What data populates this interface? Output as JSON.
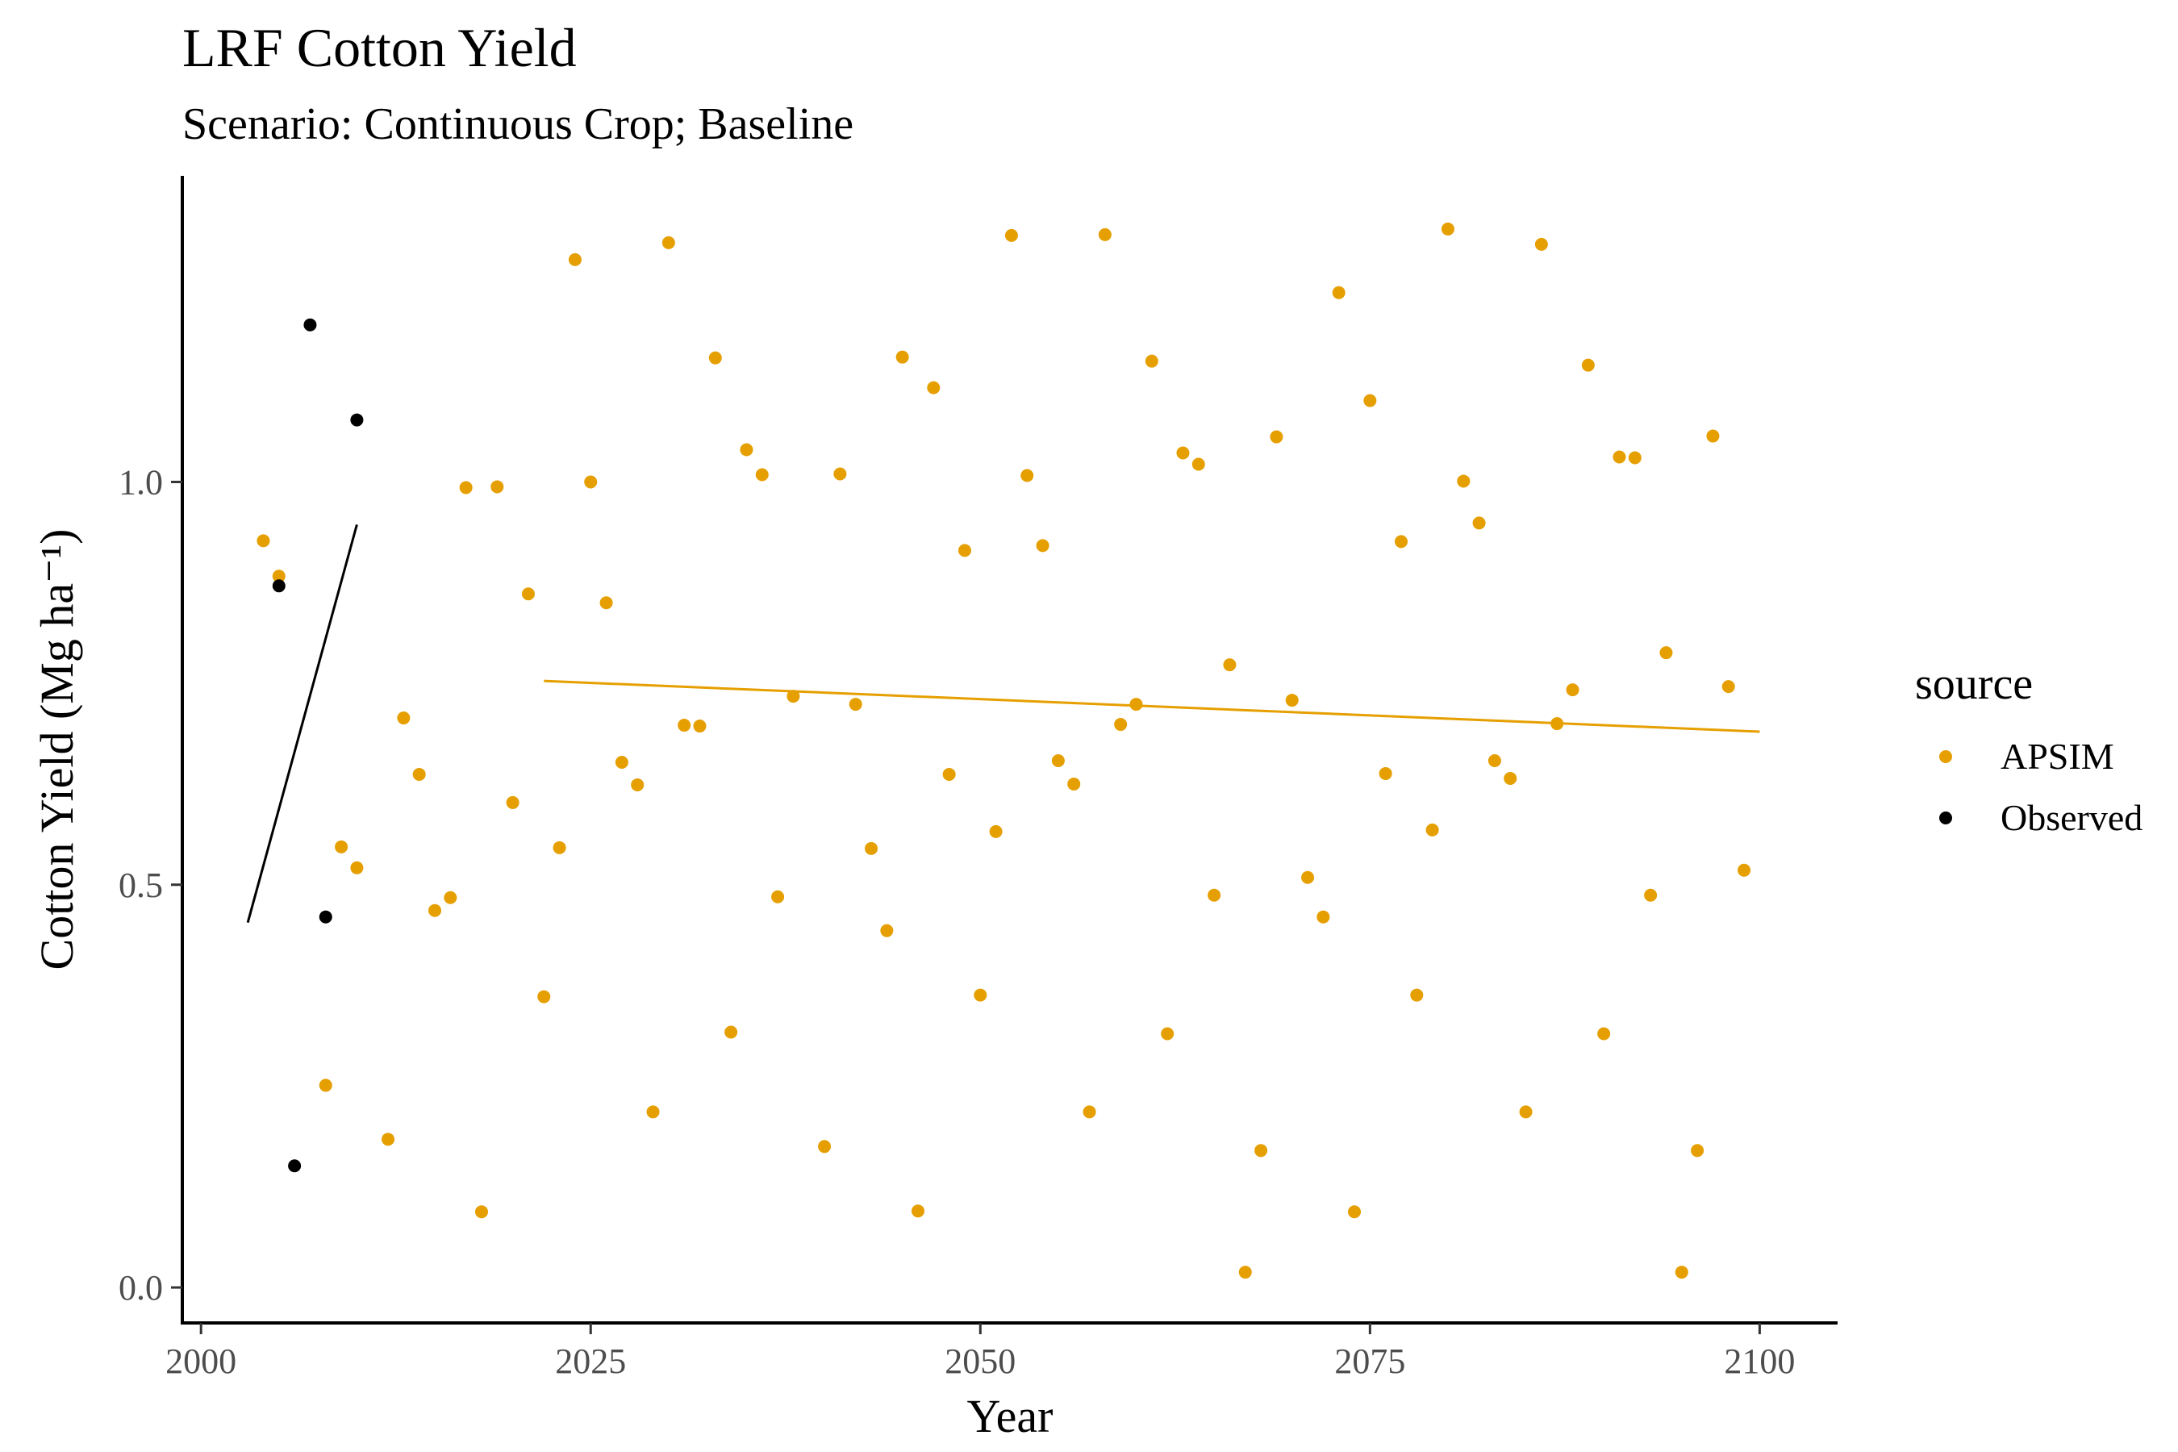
{
  "chart_data": {
    "type": "scatter",
    "title": "LRF Cotton Yield",
    "subtitle": "Scenario: Continuous Crop; Baseline",
    "xlabel": "Year",
    "ylabel": "Cotton Yield (Mg ha⁻¹)",
    "xlim": [
      1998.8,
      2105
    ],
    "ylim": [
      -0.044,
      1.38
    ],
    "x_ticks": [
      2000,
      2025,
      2050,
      2075,
      2100
    ],
    "y_ticks": [
      0.0,
      0.5,
      1.0
    ],
    "x_tick_labels": [
      "2000",
      "2025",
      "2050",
      "2075",
      "2100"
    ],
    "y_tick_labels": [
      "0.0",
      "0.5",
      "1.0"
    ],
    "grid": false,
    "legend": {
      "title": "source",
      "position": "right"
    },
    "series": [
      {
        "name": "APSIM",
        "color": "#E69F00",
        "points": [
          [
            2004,
            0.927
          ],
          [
            2005,
            0.883
          ],
          [
            2008,
            0.251
          ],
          [
            2009,
            0.547
          ],
          [
            2010,
            0.521
          ],
          [
            2012,
            0.184
          ],
          [
            2013,
            0.707
          ],
          [
            2014,
            0.637
          ],
          [
            2015,
            0.468
          ],
          [
            2016,
            0.484
          ],
          [
            2017,
            0.993
          ],
          [
            2018,
            0.094
          ],
          [
            2019,
            0.994
          ],
          [
            2020,
            0.602
          ],
          [
            2021,
            0.861
          ],
          [
            2022,
            0.361
          ],
          [
            2023,
            0.546
          ],
          [
            2024,
            1.276
          ],
          [
            2025,
            1.0
          ],
          [
            2026,
            0.85
          ],
          [
            2027,
            0.652
          ],
          [
            2028,
            0.624
          ],
          [
            2029,
            0.218
          ],
          [
            2030,
            1.297
          ],
          [
            2031,
            0.698
          ],
          [
            2032,
            0.697
          ],
          [
            2033,
            1.154
          ],
          [
            2034,
            0.317
          ],
          [
            2035,
            1.04
          ],
          [
            2036,
            1.009
          ],
          [
            2037,
            0.485
          ],
          [
            2038,
            0.734
          ],
          [
            2040,
            0.175
          ],
          [
            2041,
            1.01
          ],
          [
            2042,
            0.724
          ],
          [
            2043,
            0.545
          ],
          [
            2044,
            0.443
          ],
          [
            2045,
            1.155
          ],
          [
            2046,
            0.095
          ],
          [
            2047,
            1.117
          ],
          [
            2048,
            0.637
          ],
          [
            2049,
            0.915
          ],
          [
            2050,
            0.363
          ],
          [
            2051,
            0.566
          ],
          [
            2052,
            1.306
          ],
          [
            2053,
            1.008
          ],
          [
            2054,
            0.921
          ],
          [
            2055,
            0.654
          ],
          [
            2056,
            0.625
          ],
          [
            2057,
            0.218
          ],
          [
            2058,
            1.307
          ],
          [
            2059,
            0.699
          ],
          [
            2060,
            0.724
          ],
          [
            2061,
            1.15
          ],
          [
            2062,
            0.315
          ],
          [
            2063,
            1.036
          ],
          [
            2064,
            1.022
          ],
          [
            2065,
            0.487
          ],
          [
            2066,
            0.773
          ],
          [
            2067,
            0.019
          ],
          [
            2068,
            0.17
          ],
          [
            2069,
            1.056
          ],
          [
            2070,
            0.729
          ],
          [
            2071,
            0.509
          ],
          [
            2072,
            0.46
          ],
          [
            2073,
            1.235
          ],
          [
            2074,
            0.094
          ],
          [
            2075,
            1.101
          ],
          [
            2076,
            0.638
          ],
          [
            2077,
            0.926
          ],
          [
            2078,
            0.363
          ],
          [
            2079,
            0.568
          ],
          [
            2080,
            1.314
          ],
          [
            2081,
            1.001
          ],
          [
            2082,
            0.949
          ],
          [
            2083,
            0.654
          ],
          [
            2084,
            0.632
          ],
          [
            2085,
            0.218
          ],
          [
            2086,
            1.295
          ],
          [
            2087,
            0.7
          ],
          [
            2088,
            0.742
          ],
          [
            2089,
            1.145
          ],
          [
            2090,
            0.315
          ],
          [
            2091,
            1.031
          ],
          [
            2092,
            1.03
          ],
          [
            2093,
            0.487
          ],
          [
            2094,
            0.788
          ],
          [
            2095,
            0.019
          ],
          [
            2096,
            0.17
          ],
          [
            2097,
            1.057
          ],
          [
            2098,
            0.746
          ],
          [
            2099,
            0.518
          ]
        ],
        "trend": {
          "x": [
            2022,
            2100
          ],
          "y": [
            0.753,
            0.69
          ]
        }
      },
      {
        "name": "Observed",
        "color": "#000000",
        "points": [
          [
            2005,
            0.871
          ],
          [
            2006,
            0.151
          ],
          [
            2007,
            1.195
          ],
          [
            2008,
            0.46
          ],
          [
            2010,
            1.077
          ]
        ],
        "trend": {
          "x": [
            2003,
            2010
          ],
          "y": [
            0.453,
            0.947
          ]
        }
      }
    ]
  }
}
